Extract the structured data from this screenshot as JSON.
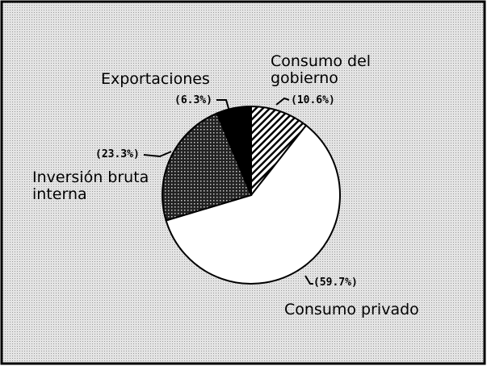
{
  "chart_data": {
    "type": "pie",
    "categories": [
      "Consumo del gobierno",
      "Consumo privado",
      "Inversión bruta interna",
      "Exportaciones"
    ],
    "values": [
      10.6,
      59.7,
      23.3,
      6.3
    ],
    "value_labels": [
      "(10.6%)",
      "(59.7%)",
      "(23.3%)",
      "(6.3%)"
    ],
    "patterns": [
      "diagonal",
      "none",
      "crosshatch",
      "solid"
    ]
  }
}
